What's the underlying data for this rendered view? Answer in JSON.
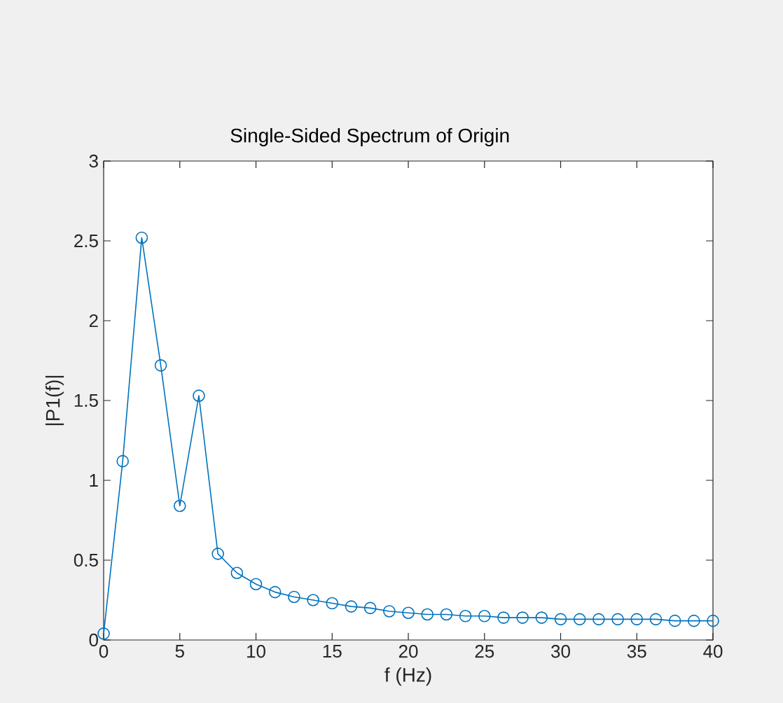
{
  "chart_data": {
    "type": "line",
    "title": "Single-Sided Spectrum of Origin",
    "xlabel": "f (Hz)",
    "ylabel": "|P1(f)|",
    "x": [
      0,
      1.25,
      2.5,
      3.75,
      5,
      6.25,
      7.5,
      8.75,
      10,
      11.25,
      12.5,
      13.75,
      15,
      16.25,
      17.5,
      18.75,
      20,
      21.25,
      22.5,
      23.75,
      25,
      26.25,
      27.5,
      28.75,
      30,
      31.25,
      32.5,
      33.75,
      35,
      36.25,
      37.5,
      38.75,
      40
    ],
    "values": [
      0.04,
      1.12,
      2.52,
      1.72,
      0.84,
      1.53,
      0.54,
      0.42,
      0.35,
      0.3,
      0.27,
      0.25,
      0.23,
      0.21,
      0.2,
      0.18,
      0.17,
      0.16,
      0.16,
      0.15,
      0.15,
      0.14,
      0.14,
      0.14,
      0.13,
      0.13,
      0.13,
      0.13,
      0.13,
      0.13,
      0.12,
      0.12,
      0.12
    ],
    "color": "#0072bd",
    "marker": "circle",
    "line_style": "solid",
    "xlim": [
      0,
      40
    ],
    "ylim": [
      0,
      3
    ],
    "xticks": [
      0,
      5,
      10,
      15,
      20,
      25,
      30,
      35,
      40
    ],
    "yticks": [
      0,
      0.5,
      1,
      1.5,
      2,
      2.5,
      3
    ]
  }
}
